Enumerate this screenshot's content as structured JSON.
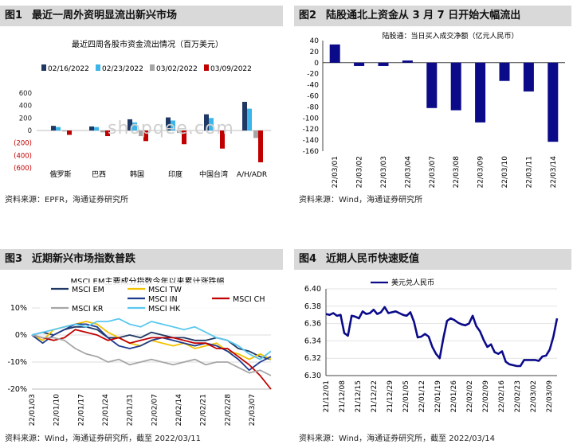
{
  "panels": [
    {
      "num": "图1",
      "title": "最近一周外资明显流出新兴市场",
      "source": "资料来源：EPFR，海通证券研究所"
    },
    {
      "num": "图2",
      "title": "陆股通北上资金从 3 月 7 日开始大幅流出",
      "source": "资料来源：Wind，海通证券研究所"
    },
    {
      "num": "图3",
      "title": "近期新兴市场指数普跌",
      "source": "资料来源：Wind，海通证券研究所，截至 2022/03/11"
    },
    {
      "num": "图4",
      "title": "近期人民币快速贬值",
      "source": "资料来源：Wind，海通证券研究所，截至 2022/03/14"
    }
  ],
  "watermark": "shopqee.com",
  "colors": {
    "navy": "#1f3864",
    "cyan": "#3cb5ea",
    "gray": "#a6a6a6",
    "red": "#c00000",
    "blue": "#0b0b8a",
    "grid": "#d9d9d9"
  },
  "chart_data": [
    {
      "type": "bar",
      "title": "最近四周各股市资金流出情况（百万美元）",
      "categories": [
        "俄罗斯",
        "巴西",
        "韩国",
        "印度",
        "中国台湾",
        "A/H/ADR"
      ],
      "series": [
        {
          "name": "02/16/2022",
          "color": "#1f3864",
          "values": [
            75,
            65,
            180,
            210,
            260,
            460
          ]
        },
        {
          "name": "02/23/2022",
          "color": "#3cb5ea",
          "values": [
            55,
            55,
            130,
            160,
            200,
            350
          ]
        },
        {
          "name": "03/02/2022",
          "color": "#a6a6a6",
          "values": [
            -15,
            -30,
            -90,
            -40,
            -10,
            -120
          ]
        },
        {
          "name": "03/09/2022",
          "color": "#c00000",
          "values": [
            -70,
            -90,
            -170,
            -220,
            -290,
            -510
          ]
        }
      ],
      "yticks": [
        "600",
        "400",
        "200",
        "0",
        "(200)",
        "(400)",
        "(600)"
      ],
      "ylim": [
        -600,
        600
      ]
    },
    {
      "type": "bar",
      "title": "陆股通：当日买入成交净额（亿元人民币）",
      "categories": [
        "22/03/01",
        "22/03/02",
        "22/03/03",
        "22/03/04",
        "22/03/07",
        "22/03/08",
        "22/03/09",
        "22/03/10",
        "22/03/11",
        "22/03/14"
      ],
      "values": [
        33,
        -6,
        -6,
        4,
        -82,
        -86,
        -108,
        -33,
        -52,
        -143
      ],
      "yticks": [
        "40",
        "20",
        "0",
        "-20",
        "-40",
        "-60",
        "-80",
        "-100",
        "-120",
        "-140",
        "-160"
      ],
      "ylim": [
        -160,
        40
      ]
    },
    {
      "type": "line",
      "title": "MSCI EM主要成分指数今年以来累计涨跌幅",
      "x_labels": [
        "22/01/03",
        "22/01/10",
        "22/01/17",
        "22/01/24",
        "22/01/31",
        "22/02/07",
        "22/02/14",
        "22/02/21",
        "22/02/28",
        "22/03/07"
      ],
      "yticks": [
        "10%",
        "0%",
        "-10%",
        "-20%"
      ],
      "ylim": [
        -20,
        10
      ],
      "series": [
        {
          "name": "MSCI EM",
          "color": "#1f3864",
          "values": [
            0,
            1,
            0,
            2,
            3,
            3,
            2,
            -1,
            -1,
            0,
            -1,
            1,
            0,
            -1,
            -1,
            -2,
            -2,
            -1,
            -2,
            -5,
            -6,
            -8,
            -9
          ]
        },
        {
          "name": "MSCI TW",
          "color": "#f2c200",
          "values": [
            0,
            -2,
            2,
            3,
            4,
            5,
            4,
            1,
            -1,
            -3,
            -4,
            -2,
            -3,
            -4,
            -3,
            -5,
            -4,
            -3,
            -6,
            -7,
            -9,
            -7,
            -9
          ]
        },
        {
          "name": "MSCI IN",
          "color": "#1f3b8f",
          "values": [
            0,
            -3,
            0,
            2,
            4,
            4,
            3,
            -1,
            -4,
            -5,
            -4,
            -2,
            -1,
            -2,
            -3,
            -4,
            -3,
            -4,
            -6,
            -9,
            -13,
            -10,
            -8
          ]
        },
        {
          "name": "MSCI CH",
          "color": "#c00000",
          "values": [
            0,
            -1,
            -2,
            -1,
            2,
            1,
            0,
            -2,
            -1,
            -3,
            -2,
            -1,
            -1,
            -1,
            -2,
            -3,
            -3,
            -5,
            -5,
            -8,
            -11,
            -15,
            -20
          ]
        },
        {
          "name": "MSCI KR",
          "color": "#a6a6a6",
          "values": [
            0,
            -1,
            -1,
            -2,
            -5,
            -7,
            -8,
            -10,
            -9,
            -11,
            -10,
            -9,
            -10,
            -11,
            -10,
            -9,
            -11,
            -10,
            -10,
            -12,
            -14,
            -13,
            -15
          ]
        },
        {
          "name": "MSCI HK",
          "color": "#5bc8ef",
          "values": [
            0,
            1,
            2,
            3,
            4,
            3,
            5,
            5,
            6,
            4,
            3,
            5,
            4,
            3,
            2,
            3,
            1,
            -1,
            -2,
            -4,
            -7,
            -9,
            -6
          ]
        }
      ]
    },
    {
      "type": "line",
      "title": "美元兑人民币",
      "x_labels": [
        "21/12/01",
        "21/12/08",
        "21/12/15",
        "21/12/22",
        "21/12/29",
        "22/01/05",
        "22/01/12",
        "22/01/19",
        "22/01/26",
        "22/02/02",
        "22/02/09",
        "22/02/16",
        "22/02/23",
        "22/03/02",
        "22/03/09"
      ],
      "yticks": [
        "6.40",
        "6.38",
        "6.36",
        "6.34",
        "6.32",
        "6.30"
      ],
      "ylim": [
        6.3,
        6.4
      ],
      "series": [
        {
          "name": "美元兑人民币",
          "color": "#0b0b8a",
          "values": [
            6.371,
            6.37,
            6.372,
            6.369,
            6.37,
            6.349,
            6.346,
            6.369,
            6.368,
            6.366,
            6.374,
            6.371,
            6.372,
            6.376,
            6.371,
            6.373,
            6.379,
            6.372,
            6.373,
            6.374,
            6.372,
            6.37,
            6.369,
            6.373,
            6.362,
            6.344,
            6.345,
            6.348,
            6.345,
            6.333,
            6.325,
            6.32,
            6.343,
            6.363,
            6.366,
            6.364,
            6.361,
            6.359,
            6.358,
            6.36,
            6.369,
            6.357,
            6.351,
            6.341,
            6.333,
            6.336,
            6.327,
            6.325,
            6.328,
            6.316,
            6.313,
            6.312,
            6.311,
            6.311,
            6.318,
            6.318,
            6.318,
            6.318,
            6.317,
            6.322,
            6.323,
            6.33,
            6.345,
            6.366
          ]
        }
      ]
    }
  ]
}
